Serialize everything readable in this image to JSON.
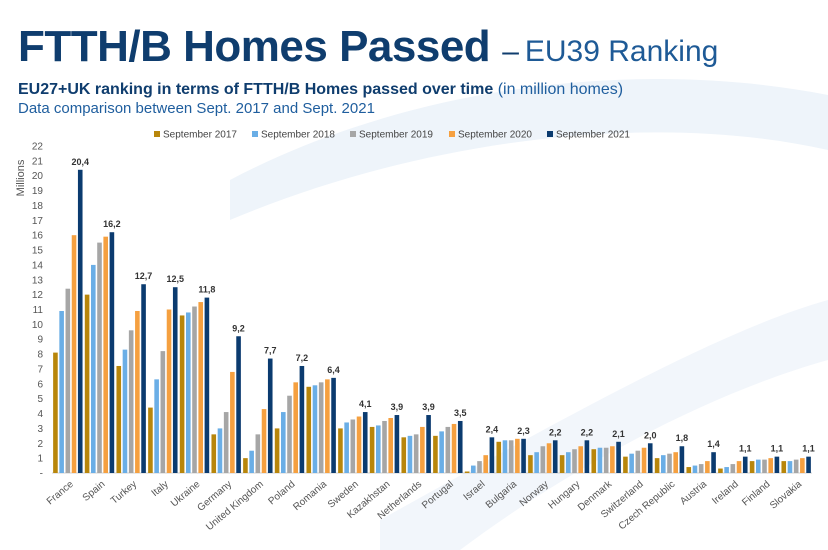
{
  "header": {
    "title_main": "FTTH/B Homes Passed",
    "title_dash": "–",
    "title_sub": "EU39 Ranking",
    "subtitle_bold": "EU27+UK ranking in terms of FTTH/B Homes passed over time",
    "subtitle_note": "(in million homes)",
    "subtitle2": "Data comparison between Sept. 2017 and Sept. 2021"
  },
  "chart_data": {
    "type": "bar",
    "ylabel": "Millions",
    "ylim": [
      0,
      22
    ],
    "yticks": [
      0,
      1,
      2,
      3,
      4,
      5,
      6,
      7,
      8,
      9,
      10,
      11,
      12,
      13,
      14,
      15,
      16,
      17,
      18,
      19,
      20,
      21,
      22
    ],
    "legend_position": "top",
    "grid": false,
    "categories": [
      "France",
      "Spain",
      "Turkey",
      "Italy",
      "Ukraine",
      "Germany",
      "United Kingdom",
      "Poland",
      "Romania",
      "Sweden",
      "Kazakhstan",
      "Netherlands",
      "Portugal",
      "Israel",
      "Bulgaria",
      "Norway",
      "Hungary",
      "Denmark",
      "Switzerland",
      "Czech Republic",
      "Austria",
      "Ireland",
      "Finland",
      "Slovakia"
    ],
    "series": [
      {
        "name": "September 2017",
        "color": "#b8860b",
        "values": [
          8.1,
          12.0,
          7.2,
          4.4,
          10.6,
          2.6,
          1.0,
          3.0,
          5.8,
          3.0,
          3.1,
          2.4,
          2.5,
          0.1,
          2.1,
          1.2,
          1.2,
          1.6,
          1.1,
          1.0,
          0.4,
          0.3,
          0.8,
          0.8
        ]
      },
      {
        "name": "September 2018",
        "color": "#6aaee6",
        "values": [
          10.9,
          14.0,
          8.3,
          6.3,
          10.8,
          3.0,
          1.5,
          4.1,
          5.9,
          3.4,
          3.2,
          2.5,
          2.8,
          0.5,
          2.2,
          1.4,
          1.4,
          1.7,
          1.3,
          1.2,
          0.5,
          0.4,
          0.9,
          0.8
        ]
      },
      {
        "name": "September 2019",
        "color": "#a6a6a6",
        "values": [
          12.4,
          15.5,
          9.6,
          8.2,
          11.2,
          4.1,
          2.6,
          5.2,
          6.1,
          3.6,
          3.5,
          2.6,
          3.1,
          0.8,
          2.2,
          1.8,
          1.6,
          1.7,
          1.5,
          1.3,
          0.6,
          0.6,
          0.9,
          0.9
        ]
      },
      {
        "name": "September 2020",
        "color": "#f5a040",
        "values": [
          16.0,
          15.9,
          10.9,
          11.0,
          11.5,
          6.8,
          4.3,
          6.1,
          6.3,
          3.8,
          3.7,
          3.1,
          3.3,
          1.2,
          2.3,
          2.0,
          1.8,
          1.8,
          1.7,
          1.4,
          0.8,
          0.8,
          1.0,
          1.0
        ]
      },
      {
        "name": "September 2021",
        "color": "#0b3b6f",
        "values": [
          20.4,
          16.2,
          12.7,
          12.5,
          11.8,
          9.2,
          7.7,
          7.2,
          6.4,
          4.1,
          3.9,
          3.9,
          3.5,
          2.4,
          2.3,
          2.2,
          2.2,
          2.1,
          2.0,
          1.8,
          1.4,
          1.1,
          1.1,
          1.1
        ]
      }
    ],
    "data_labels": [
      "20,4",
      "16,2",
      "12,7",
      "12,5",
      "11,8",
      "9,2",
      "7,7",
      "7,2",
      "6,4",
      "4,1",
      "3,9",
      "3,9",
      "3,5",
      "2,4",
      "2,3",
      "2,2",
      "2,2",
      "2,1",
      "2,0",
      "1,8",
      "1,4",
      "1,1",
      "1,1",
      "1,1"
    ]
  }
}
